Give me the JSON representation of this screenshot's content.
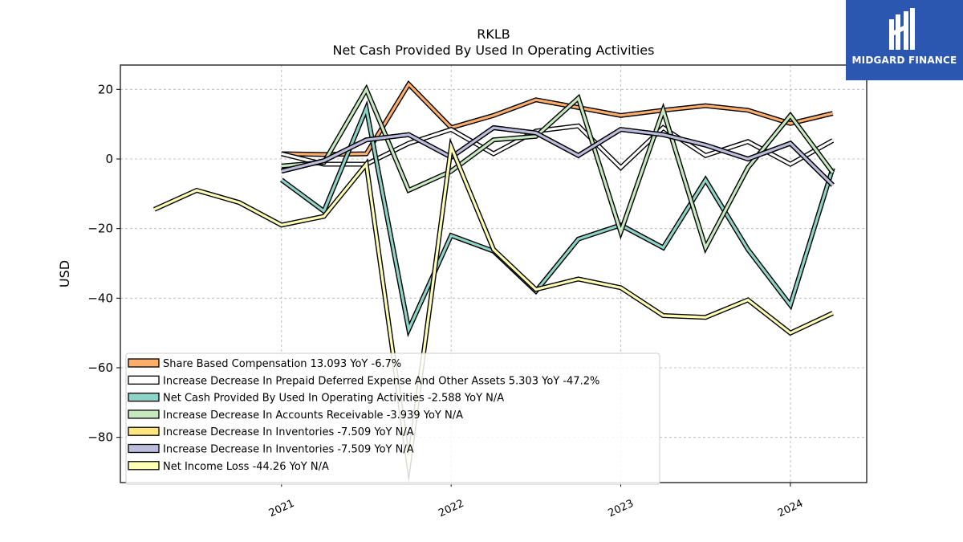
{
  "chart_data": {
    "type": "line",
    "title": "RKLB",
    "subtitle": "Net Cash Provided By Used In Operating Activities",
    "ylabel": "USD",
    "xlabel": "",
    "ylim": [
      -93,
      27
    ],
    "xlim": [
      2020.05,
      2024.45
    ],
    "yticks": [
      20,
      0,
      -20,
      -40,
      -60,
      -80
    ],
    "ytick_labels": [
      "20",
      "0",
      "−20",
      "−40",
      "−60",
      "−80"
    ],
    "xticks": [
      2021,
      2022,
      2023,
      2024
    ],
    "xtick_labels": [
      "2021",
      "2022",
      "2023",
      "2024"
    ],
    "grid": true,
    "legend_position": "lower-left",
    "series": [
      {
        "name": "Share Based Compensation",
        "legend_label": "Share Based Compensation  13.093 YoY -6.7%",
        "color": "#fdae6b",
        "x": [
          2021.0,
          2021.25,
          2021.5,
          2021.75,
          2022.0,
          2022.25,
          2022.5,
          2022.75,
          2023.0,
          2023.25,
          2023.5,
          2023.75,
          2024.0,
          2024.25
        ],
        "y": [
          1.5,
          1.3,
          1.5,
          21.5,
          9.0,
          12.5,
          17.0,
          14.8,
          12.5,
          14.0,
          15.3,
          14.0,
          10.2,
          13.1
        ]
      },
      {
        "name": "Increase Decrease In Prepaid Deferred Expense And Other Assets",
        "legend_label": "Increase Decrease In Prepaid Deferred Expense And Other Assets  5.303 YoY -47.2%",
        "color": "#ffffff",
        "x": [
          2021.0,
          2021.25,
          2021.5,
          2021.75,
          2022.0,
          2022.25,
          2022.5,
          2022.75,
          2023.0,
          2023.25,
          2023.5,
          2023.75,
          2024.0,
          2024.25
        ],
        "y": [
          1.5,
          -1.5,
          -1.5,
          4.5,
          8.5,
          1.5,
          8.0,
          9.5,
          -2.5,
          9.0,
          1.0,
          5.0,
          -1.5,
          5.3
        ]
      },
      {
        "name": "Net Cash Provided By Used In Operating Activities",
        "legend_label": "Net Cash Provided By Used In Operating Activities  -2.588 YoY N/A",
        "color": "#8dd3c7",
        "x": [
          2021.0,
          2021.25,
          2021.5,
          2021.75,
          2022.0,
          2022.25,
          2022.5,
          2022.75,
          2023.0,
          2023.25,
          2023.5,
          2023.75,
          2024.0,
          2024.25
        ],
        "y": [
          -6.0,
          -15.0,
          14.5,
          -49.0,
          -22.0,
          -26.5,
          -38.0,
          -23.0,
          -19.0,
          -25.5,
          -6.0,
          -26.0,
          -42.0,
          -2.6
        ]
      },
      {
        "name": "Increase Decrease In Accounts Receivable",
        "legend_label": "Increase Decrease In Accounts Receivable  -3.939 YoY N/A",
        "color": "#c7e9c0",
        "x": [
          2021.0,
          2021.25,
          2021.5,
          2021.75,
          2022.0,
          2022.25,
          2022.5,
          2022.75,
          2023.0,
          2023.25,
          2023.5,
          2023.75,
          2024.0,
          2024.25
        ],
        "y": [
          -2.0,
          -1.0,
          20.0,
          -9.0,
          -3.5,
          5.5,
          6.5,
          17.5,
          -21.0,
          14.0,
          -25.5,
          -2.5,
          12.5,
          -3.9
        ]
      },
      {
        "name": "Increase Decrease In Inventories",
        "legend_label": "Increase Decrease In Inventories  -7.509 YoY N/A",
        "color": "#ffe680",
        "x": [
          2021.0,
          2021.25,
          2021.5,
          2021.75,
          2022.0,
          2022.25,
          2022.5,
          2022.75,
          2023.0,
          2023.25,
          2023.5,
          2023.75,
          2024.0,
          2024.25
        ],
        "y": [
          -3.5,
          -0.5,
          5.5,
          7.0,
          0.5,
          9.0,
          7.5,
          1.0,
          8.5,
          7.0,
          4.0,
          0.0,
          4.5,
          -7.5
        ]
      },
      {
        "name": "Increase Decrease In Inventories",
        "legend_label": "Increase Decrease In Inventories  -7.509 YoY N/A",
        "color": "#bcbddc",
        "x": [
          2021.0,
          2021.25,
          2021.5,
          2021.75,
          2022.0,
          2022.25,
          2022.5,
          2022.75,
          2023.0,
          2023.25,
          2023.5,
          2023.75,
          2024.0,
          2024.25
        ],
        "y": [
          -3.5,
          -0.5,
          5.5,
          7.0,
          0.5,
          9.0,
          7.5,
          1.0,
          8.5,
          7.0,
          4.0,
          0.0,
          4.5,
          -7.5
        ]
      },
      {
        "name": "Net Income Loss",
        "legend_label": "Net Income Loss  -44.26 YoY N/A",
        "color": "#ffffb3",
        "x": [
          2020.25,
          2020.5,
          2020.75,
          2021.0,
          2021.25,
          2021.5,
          2021.75,
          2022.0,
          2022.25,
          2022.5,
          2022.75,
          2023.0,
          2023.25,
          2023.5,
          2023.75,
          2024.0,
          2024.25
        ],
        "y": [
          -14.5,
          -9.0,
          -12.5,
          -19.0,
          -16.5,
          -1.5,
          -88.0,
          3.5,
          -26.0,
          -37.5,
          -34.5,
          -37.0,
          -45.0,
          -45.5,
          -40.5,
          -50.0,
          -44.3
        ]
      }
    ]
  },
  "logo": {
    "brand_text": "MIDGARD FINANCE",
    "background_color": "#2b57b0"
  }
}
